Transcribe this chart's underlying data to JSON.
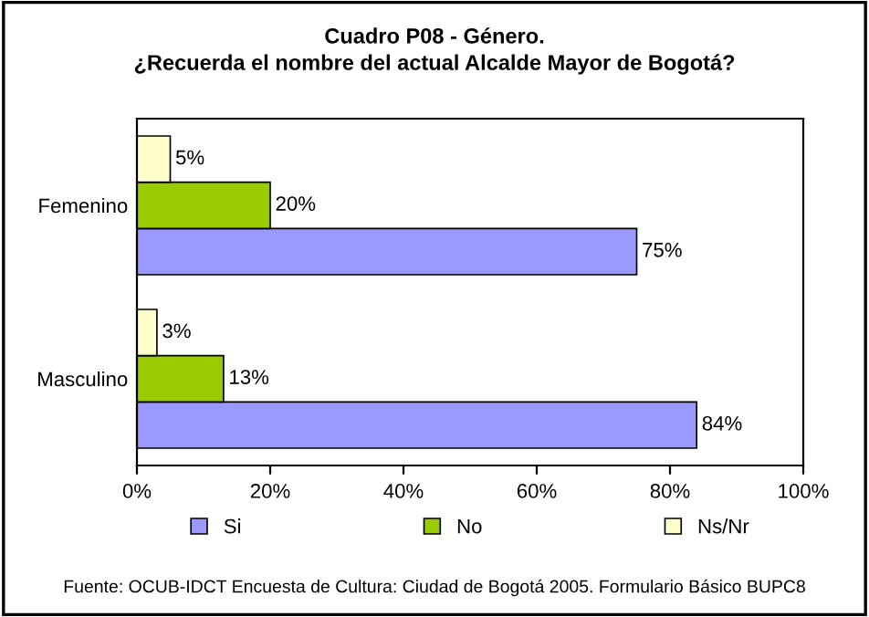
{
  "chart_data": {
    "type": "bar",
    "orientation": "horizontal",
    "title": "Cuadro P08 - Género.\n¿Recuerda el nombre del actual Alcalde Mayor de Bogotá?",
    "categories": [
      "Femenino",
      "Masculino"
    ],
    "series": [
      {
        "name": "Si",
        "color": "#9999ff",
        "values": [
          75,
          84
        ],
        "value_labels": [
          "75%",
          "84%"
        ]
      },
      {
        "name": "No",
        "color": "#99cc00",
        "values": [
          20,
          13
        ],
        "value_labels": [
          "20%",
          "13%"
        ]
      },
      {
        "name": "Ns/Nr",
        "color": "#ffffcc",
        "values": [
          5,
          3
        ],
        "value_labels": [
          "5%",
          "3%"
        ]
      }
    ],
    "xlim": [
      0,
      100
    ],
    "xticks": [
      {
        "value": 0,
        "label": "0%"
      },
      {
        "value": 20,
        "label": "20%"
      },
      {
        "value": 40,
        "label": "40%"
      },
      {
        "value": 60,
        "label": "60%"
      },
      {
        "value": 80,
        "label": "80%"
      },
      {
        "value": 100,
        "label": "100%"
      }
    ],
    "legend": "bottom",
    "grid": false,
    "annotations": [
      "Fuente: OCUB-IDCT Encuesta de Cultura: Ciudad de Bogotá 2005. Formulario Básico BUPC8"
    ]
  }
}
